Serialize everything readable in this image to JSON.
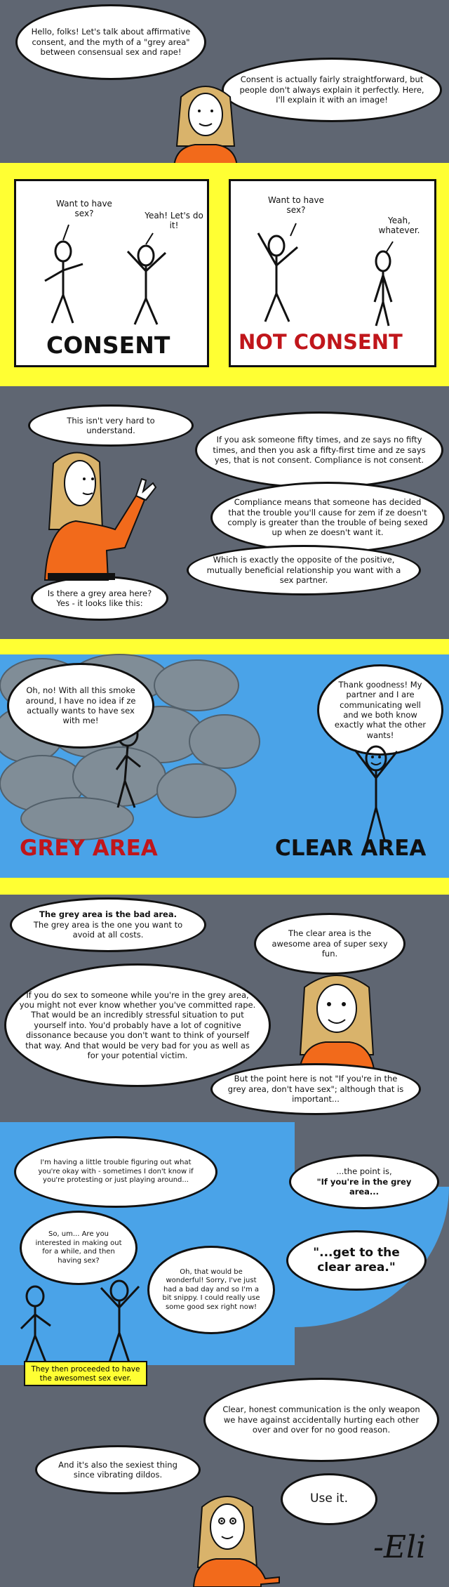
{
  "intro": {
    "bubble1": "Hello, folks! Let's talk about affirmative consent, and the myth of a \"grey area\" between consensual sex and rape!",
    "bubble2": "Consent is actually fairly straightforward, but people don't always explain it perfectly. Here, I'll explain it with an image!"
  },
  "panel_consent": {
    "q": "Want to have sex?",
    "a": "Yeah! Let's do it!",
    "label": "CONSENT"
  },
  "panel_not_consent": {
    "q": "Want to have sex?",
    "a": "Yeah, whatever.",
    "label": "NOT CONSENT"
  },
  "explain": {
    "b1": "This isn't very hard to understand.",
    "b2": "If you ask someone fifty times, and ze says no fifty times, and then you ask a fifty-first time and ze says yes, that is not consent. Compliance is not consent.",
    "b3": "Compliance means that someone has decided that the trouble you'll cause for zem if ze doesn't comply is greater than the trouble of being sexed up when ze doesn't want it.",
    "b4": "Which is exactly the opposite of the positive, mutually beneficial relationship you want with a sex partner.",
    "b5": "Is there a grey area here? Yes - it looks like this:"
  },
  "grey_clear": {
    "grey_bubble": "Oh, no! With all this smoke around, I have no idea if ze actually wants to have sex with me!",
    "clear_bubble": "Thank goodness! My partner and I are communicating well and we both know exactly what the other wants!",
    "grey_label": "GREY AREA",
    "clear_label": "CLEAR AREA"
  },
  "bad_area": {
    "b1_bold": "The grey area is the bad area.",
    "b1_rest": "The grey area is the one you want to avoid at all costs.",
    "b2": "The clear area is the awesome area of super sexy fun.",
    "b3": "If you do sex to someone while you're in the grey area, you might not ever know whether you've committed rape. That would be an incredibly stressful situation to put yourself into. You'd probably have a lot of cognitive dissonance because you don't want to think of yourself that way. And that would be very bad for you as well as for your potential victim.",
    "b4": "But the point here is not \"If you're in the grey area, don't have sex\"; although that is important...",
    "b5_plain": "...the point is,",
    "b5_bold": "\"If you're in the grey area...",
    "b6": "\"...get to the clear area.\""
  },
  "conversation": {
    "c1": "I'm having a little trouble figuring out what you're okay with - sometimes I don't know if you're protesting or just playing around...",
    "c2": "So, um... Are you interested in making out for a while, and then having sex?",
    "c3": "Oh, that would be wonderful! Sorry, I've just had a bad day and so I'm a bit snippy. I could really use some good sex right now!",
    "caption": "They then proceeded to have the awesomest sex ever."
  },
  "closing": {
    "b1": "Clear, honest communication is the only weapon we have against accidentally hurting each other over and over for no good reason.",
    "b2": "And it's also the sexiest thing since vibrating dildos.",
    "b3": "Use it.",
    "signature": "-Eli"
  },
  "colors": {
    "background": "#5f6672",
    "yellow": "#ffff33",
    "sky": "#4aa3e8",
    "consent_label": "#111111",
    "not_consent_label": "#c0161b",
    "grey_label": "#c0161b",
    "clear_label": "#111111",
    "shirt": "#f26a1b",
    "hair": "#d9b36b"
  }
}
